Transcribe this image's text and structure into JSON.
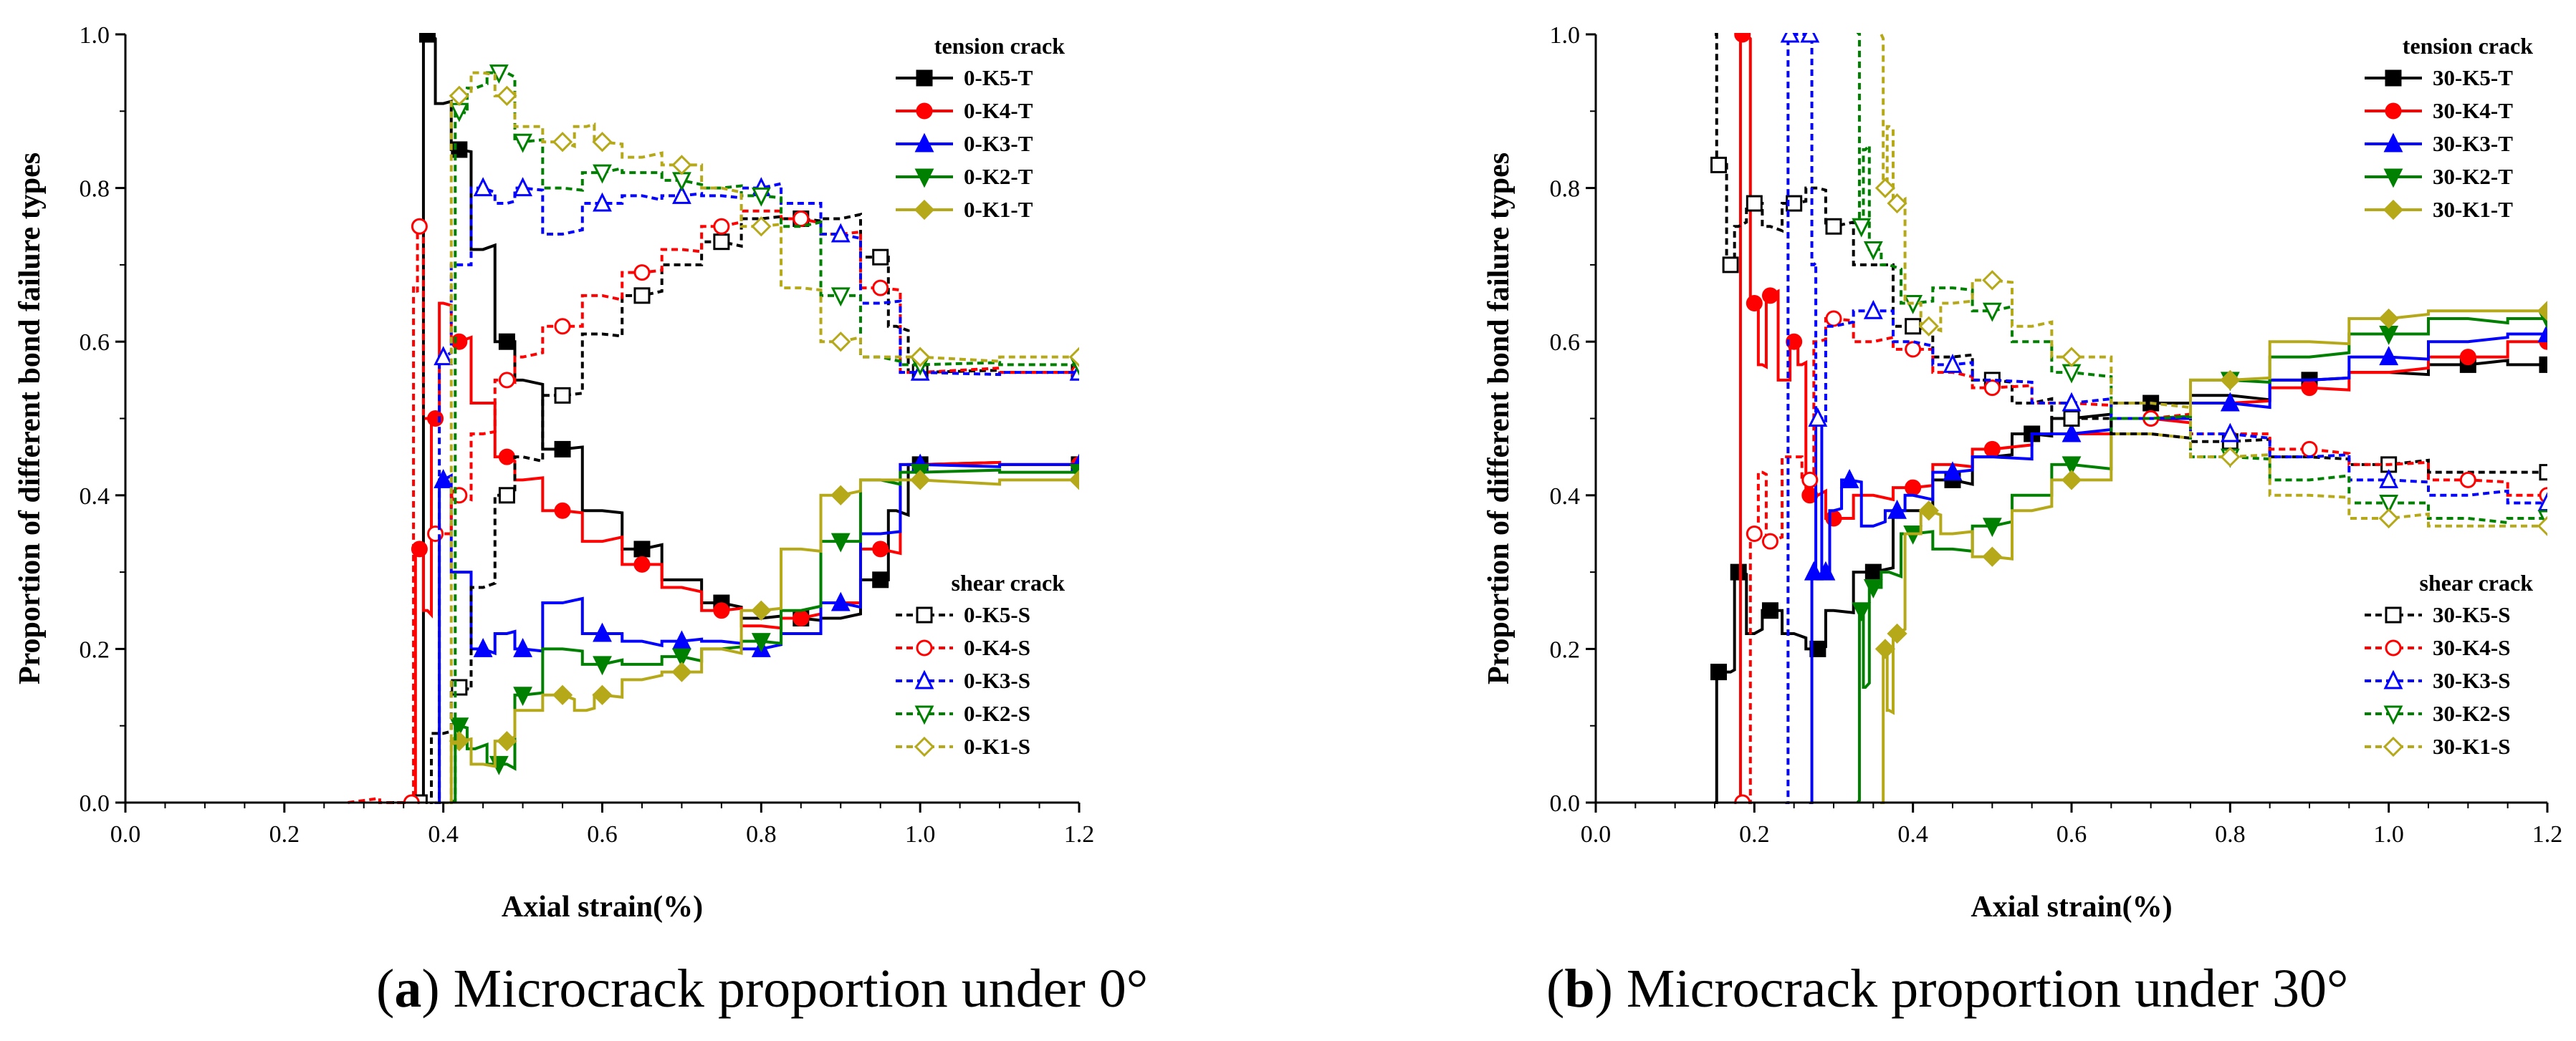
{
  "captions": [
    {
      "letter": "a",
      "text": "Microcrack proportion under 0°"
    },
    {
      "letter": "b",
      "text": "Microcrack proportion under 30°"
    }
  ],
  "chart_data": [
    {
      "type": "line",
      "xlabel": "Axial strain(%)",
      "ylabel": "Proportion of different bond failure types",
      "xlim": [
        0,
        1.2
      ],
      "ylim": [
        0,
        1.0
      ],
      "xticks": [
        "0.0",
        "0.2",
        "0.4",
        "0.6",
        "0.8",
        "1.0",
        "1.2"
      ],
      "yticks": [
        "0.0",
        "0.2",
        "0.4",
        "0.6",
        "0.8",
        "1.0"
      ],
      "legend_groups": [
        {
          "title": "tension crack",
          "position": "top-right",
          "entries": [
            "0-K5-T",
            "0-K4-T",
            "0-K3-T",
            "0-K2-T",
            "0-K1-T"
          ]
        },
        {
          "title": "shear crack",
          "position": "bottom-right",
          "entries": [
            "0-K5-S",
            "0-K4-S",
            "0-K3-S",
            "0-K2-S",
            "0-K1-S"
          ]
        }
      ],
      "series": [
        {
          "name": "0-K5-T",
          "color": "#000000",
          "dash": false,
          "marker": "square",
          "x": [
            0.37,
            0.38,
            0.4,
            0.42,
            0.45,
            0.48,
            0.5,
            0.55,
            0.6,
            0.65,
            0.7,
            0.75,
            0.8,
            0.85,
            0.9,
            0.95,
            0.97,
            1.0,
            1.2
          ],
          "y": [
            0.0,
            1.0,
            0.91,
            0.85,
            0.72,
            0.6,
            0.55,
            0.46,
            0.38,
            0.33,
            0.29,
            0.26,
            0.24,
            0.24,
            0.24,
            0.29,
            0.38,
            0.44,
            0.44
          ]
        },
        {
          "name": "0-K4-T",
          "color": "#ff0000",
          "dash": false,
          "marker": "circle",
          "x": [
            0.36,
            0.37,
            0.38,
            0.39,
            0.4,
            0.42,
            0.45,
            0.48,
            0.5,
            0.55,
            0.6,
            0.65,
            0.7,
            0.75,
            0.8,
            0.85,
            0.9,
            0.95,
            1.0,
            1.2
          ],
          "y": [
            0.0,
            0.33,
            0.25,
            0.5,
            0.65,
            0.6,
            0.52,
            0.45,
            0.42,
            0.38,
            0.34,
            0.31,
            0.28,
            0.25,
            0.23,
            0.24,
            0.26,
            0.33,
            0.44,
            0.44
          ]
        },
        {
          "name": "0-K3-T",
          "color": "#0000ff",
          "dash": false,
          "marker": "triangle-up",
          "x": [
            0.39,
            0.4,
            0.42,
            0.45,
            0.48,
            0.5,
            0.55,
            0.6,
            0.65,
            0.7,
            0.75,
            0.8,
            0.85,
            0.9,
            0.95,
            1.0,
            1.2
          ],
          "y": [
            0.0,
            0.42,
            0.3,
            0.2,
            0.22,
            0.2,
            0.26,
            0.22,
            0.21,
            0.21,
            0.21,
            0.2,
            0.22,
            0.26,
            0.35,
            0.44,
            0.44
          ]
        },
        {
          "name": "0-K2-T",
          "color": "#008000",
          "dash": false,
          "marker": "triangle-down",
          "x": [
            0.41,
            0.42,
            0.44,
            0.47,
            0.48,
            0.5,
            0.55,
            0.6,
            0.65,
            0.7,
            0.75,
            0.8,
            0.85,
            0.9,
            0.95,
            1.0,
            1.2
          ],
          "y": [
            0.0,
            0.1,
            0.07,
            0.05,
            0.05,
            0.14,
            0.2,
            0.18,
            0.18,
            0.19,
            0.2,
            0.21,
            0.25,
            0.34,
            0.42,
            0.43,
            0.43
          ]
        },
        {
          "name": "0-K1-T",
          "color": "#b5a91a",
          "dash": false,
          "marker": "diamond",
          "x": [
            0.4,
            0.42,
            0.45,
            0.48,
            0.5,
            0.55,
            0.58,
            0.6,
            0.65,
            0.7,
            0.75,
            0.8,
            0.85,
            0.9,
            0.95,
            1.0,
            1.2
          ],
          "y": [
            0.0,
            0.08,
            0.05,
            0.08,
            0.12,
            0.14,
            0.12,
            0.14,
            0.16,
            0.17,
            0.2,
            0.25,
            0.33,
            0.4,
            0.42,
            0.42,
            0.42
          ]
        },
        {
          "name": "0-K5-S",
          "color": "#000000",
          "dash": true,
          "marker": "square",
          "x": [
            0.33,
            0.37,
            0.4,
            0.42,
            0.45,
            0.48,
            0.5,
            0.55,
            0.6,
            0.65,
            0.7,
            0.75,
            0.8,
            0.85,
            0.9,
            0.95,
            0.97,
            1.0,
            1.2
          ],
          "y": [
            0.0,
            0.0,
            0.09,
            0.15,
            0.28,
            0.4,
            0.45,
            0.53,
            0.61,
            0.66,
            0.7,
            0.73,
            0.76,
            0.76,
            0.76,
            0.71,
            0.62,
            0.56,
            0.56
          ]
        },
        {
          "name": "0-K4-S",
          "color": "#ff0000",
          "dash": true,
          "marker": "circle",
          "x": [
            0.28,
            0.36,
            0.365,
            0.37,
            0.38,
            0.39,
            0.4,
            0.42,
            0.45,
            0.48,
            0.5,
            0.55,
            0.6,
            0.65,
            0.7,
            0.75,
            0.8,
            0.85,
            0.9,
            0.95,
            1.0,
            1.2
          ],
          "y": [
            0.0,
            0.0,
            0.67,
            0.75,
            0.5,
            0.35,
            0.35,
            0.4,
            0.48,
            0.55,
            0.58,
            0.62,
            0.66,
            0.69,
            0.72,
            0.75,
            0.77,
            0.76,
            0.74,
            0.67,
            0.56,
            0.56
          ]
        },
        {
          "name": "0-K3-S",
          "color": "#0000ff",
          "dash": true,
          "marker": "triangle-up",
          "x": [
            0.39,
            0.4,
            0.42,
            0.45,
            0.48,
            0.5,
            0.55,
            0.6,
            0.65,
            0.7,
            0.75,
            0.8,
            0.85,
            0.9,
            0.95,
            1.0,
            1.2
          ],
          "y": [
            0.0,
            0.58,
            0.7,
            0.8,
            0.78,
            0.8,
            0.74,
            0.78,
            0.79,
            0.79,
            0.79,
            0.8,
            0.78,
            0.74,
            0.65,
            0.56,
            0.56
          ]
        },
        {
          "name": "0-K2-S",
          "color": "#008000",
          "dash": true,
          "marker": "triangle-down",
          "x": [
            0.41,
            0.42,
            0.44,
            0.47,
            0.48,
            0.5,
            0.55,
            0.6,
            0.65,
            0.7,
            0.75,
            0.8,
            0.85,
            0.9,
            0.95,
            1.0,
            1.2
          ],
          "y": [
            0.0,
            0.9,
            0.93,
            0.95,
            0.95,
            0.86,
            0.8,
            0.82,
            0.82,
            0.81,
            0.8,
            0.79,
            0.75,
            0.66,
            0.58,
            0.57,
            0.57
          ]
        },
        {
          "name": "0-K1-S",
          "color": "#b5a91a",
          "dash": true,
          "marker": "diamond",
          "x": [
            0.4,
            0.42,
            0.45,
            0.48,
            0.5,
            0.55,
            0.58,
            0.6,
            0.65,
            0.7,
            0.75,
            0.8,
            0.85,
            0.9,
            0.95,
            1.0,
            1.2
          ],
          "y": [
            0.0,
            0.92,
            0.95,
            0.92,
            0.88,
            0.86,
            0.88,
            0.86,
            0.84,
            0.83,
            0.8,
            0.75,
            0.67,
            0.6,
            0.58,
            0.58,
            0.58
          ]
        }
      ]
    },
    {
      "type": "line",
      "xlabel": "Axial strain(%)",
      "ylabel": "Proportion of different bond failure types",
      "xlim": [
        0,
        1.2
      ],
      "ylim": [
        0,
        1.0
      ],
      "xticks": [
        "0.0",
        "0.2",
        "0.4",
        "0.6",
        "0.8",
        "1.0",
        "1.2"
      ],
      "yticks": [
        "0.0",
        "0.2",
        "0.4",
        "0.6",
        "0.8",
        "1.0"
      ],
      "legend_groups": [
        {
          "title": "tension crack",
          "position": "top-right",
          "entries": [
            "30-K5-T",
            "30-K4-T",
            "30-K3-T",
            "30-K2-T",
            "30-K1-T"
          ]
        },
        {
          "title": "shear crack",
          "position": "bottom-right",
          "entries": [
            "30-K5-S",
            "30-K4-S",
            "30-K3-S",
            "30-K2-S",
            "30-K1-S"
          ]
        }
      ],
      "series": [
        {
          "name": "30-K5-T",
          "color": "#000000",
          "dash": false,
          "marker": "square",
          "x": [
            0.15,
            0.155,
            0.17,
            0.18,
            0.2,
            0.22,
            0.25,
            0.28,
            0.3,
            0.35,
            0.4,
            0.45,
            0.5,
            0.55,
            0.6,
            0.7,
            0.8,
            0.9,
            1.0,
            1.1,
            1.2
          ],
          "y": [
            0.0,
            0.17,
            0.17,
            0.3,
            0.22,
            0.25,
            0.22,
            0.2,
            0.25,
            0.3,
            0.38,
            0.42,
            0.45,
            0.48,
            0.5,
            0.52,
            0.53,
            0.55,
            0.56,
            0.57,
            0.57
          ]
        },
        {
          "name": "30-K4-T",
          "color": "#ff0000",
          "dash": false,
          "marker": "circle",
          "x": [
            0.18,
            0.185,
            0.19,
            0.2,
            0.21,
            0.22,
            0.24,
            0.25,
            0.26,
            0.27,
            0.28,
            0.3,
            0.35,
            0.4,
            0.45,
            0.5,
            0.6,
            0.7,
            0.8,
            0.9,
            1.0,
            1.1,
            1.2
          ],
          "y": [
            0.0,
            1.0,
            1.0,
            0.65,
            0.57,
            0.66,
            0.55,
            0.6,
            0.57,
            0.4,
            0.4,
            0.37,
            0.4,
            0.41,
            0.44,
            0.46,
            0.48,
            0.5,
            0.52,
            0.54,
            0.56,
            0.58,
            0.6
          ]
        },
        {
          "name": "30-K3-T",
          "color": "#0000ff",
          "dash": false,
          "marker": "triangle-up",
          "x": [
            0.27,
            0.275,
            0.28,
            0.29,
            0.3,
            0.32,
            0.35,
            0.38,
            0.4,
            0.45,
            0.5,
            0.6,
            0.7,
            0.8,
            0.9,
            1.0,
            1.1,
            1.2
          ],
          "y": [
            0.0,
            0.3,
            0.5,
            0.3,
            0.38,
            0.42,
            0.36,
            0.38,
            0.4,
            0.43,
            0.45,
            0.48,
            0.5,
            0.52,
            0.55,
            0.58,
            0.6,
            0.61
          ]
        },
        {
          "name": "30-K2-T",
          "color": "#008000",
          "dash": false,
          "marker": "triangle-down",
          "x": [
            0.33,
            0.335,
            0.34,
            0.35,
            0.37,
            0.4,
            0.45,
            0.5,
            0.55,
            0.6,
            0.7,
            0.8,
            0.9,
            1.0,
            1.1,
            1.2
          ],
          "y": [
            0.0,
            0.25,
            0.15,
            0.28,
            0.3,
            0.35,
            0.33,
            0.36,
            0.4,
            0.44,
            0.5,
            0.55,
            0.58,
            0.61,
            0.63,
            0.63
          ]
        },
        {
          "name": "30-K1-T",
          "color": "#b5a91a",
          "dash": false,
          "marker": "diamond",
          "x": [
            0.36,
            0.365,
            0.37,
            0.38,
            0.4,
            0.42,
            0.45,
            0.5,
            0.55,
            0.6,
            0.7,
            0.8,
            0.9,
            1.0,
            1.1,
            1.2
          ],
          "y": [
            0.0,
            0.2,
            0.12,
            0.22,
            0.35,
            0.38,
            0.35,
            0.32,
            0.38,
            0.42,
            0.48,
            0.55,
            0.6,
            0.63,
            0.64,
            0.64
          ]
        },
        {
          "name": "30-K5-S",
          "color": "#000000",
          "dash": true,
          "marker": "square",
          "x": [
            0.15,
            0.155,
            0.16,
            0.17,
            0.18,
            0.2,
            0.22,
            0.25,
            0.28,
            0.3,
            0.35,
            0.4,
            0.45,
            0.5,
            0.55,
            0.6,
            0.7,
            0.8,
            0.9,
            1.0,
            1.1,
            1.2
          ],
          "y": [
            1.0,
            0.83,
            0.83,
            0.7,
            0.75,
            0.78,
            0.75,
            0.78,
            0.8,
            0.75,
            0.7,
            0.62,
            0.58,
            0.55,
            0.52,
            0.5,
            0.48,
            0.47,
            0.45,
            0.44,
            0.43,
            0.43
          ]
        },
        {
          "name": "30-K4-S",
          "color": "#ff0000",
          "dash": true,
          "marker": "circle",
          "x": [
            0.18,
            0.185,
            0.19,
            0.2,
            0.21,
            0.22,
            0.25,
            0.27,
            0.28,
            0.3,
            0.35,
            0.4,
            0.45,
            0.5,
            0.6,
            0.7,
            0.8,
            0.9,
            1.0,
            1.1,
            1.2
          ],
          "y": [
            0.0,
            0.0,
            0.0,
            0.35,
            0.43,
            0.34,
            0.45,
            0.42,
            0.6,
            0.63,
            0.6,
            0.59,
            0.56,
            0.54,
            0.52,
            0.5,
            0.48,
            0.46,
            0.44,
            0.42,
            0.4
          ]
        },
        {
          "name": "30-K3-S",
          "color": "#0000ff",
          "dash": true,
          "marker": "triangle-up",
          "x": [
            0.24,
            0.245,
            0.25,
            0.27,
            0.275,
            0.28,
            0.3,
            0.35,
            0.4,
            0.45,
            0.5,
            0.6,
            0.7,
            0.8,
            0.9,
            1.0,
            1.1,
            1.2
          ],
          "y": [
            0.0,
            1.0,
            1.0,
            1.0,
            0.7,
            0.5,
            0.62,
            0.64,
            0.6,
            0.57,
            0.55,
            0.52,
            0.5,
            0.48,
            0.45,
            0.42,
            0.4,
            0.39
          ]
        },
        {
          "name": "30-K2-S",
          "color": "#008000",
          "dash": true,
          "marker": "triangle-down",
          "x": [
            0.33,
            0.335,
            0.34,
            0.35,
            0.37,
            0.4,
            0.45,
            0.5,
            0.55,
            0.6,
            0.7,
            0.8,
            0.9,
            1.0,
            1.1,
            1.2
          ],
          "y": [
            1.0,
            0.75,
            0.85,
            0.72,
            0.7,
            0.65,
            0.67,
            0.64,
            0.6,
            0.56,
            0.5,
            0.45,
            0.42,
            0.39,
            0.37,
            0.37
          ]
        },
        {
          "name": "30-K1-S",
          "color": "#b5a91a",
          "dash": true,
          "marker": "diamond",
          "x": [
            0.36,
            0.365,
            0.37,
            0.38,
            0.4,
            0.42,
            0.45,
            0.5,
            0.55,
            0.6,
            0.7,
            0.8,
            0.9,
            1.0,
            1.1,
            1.2
          ],
          "y": [
            1.0,
            0.8,
            0.88,
            0.78,
            0.65,
            0.62,
            0.65,
            0.68,
            0.62,
            0.58,
            0.52,
            0.45,
            0.4,
            0.37,
            0.36,
            0.36
          ]
        }
      ]
    }
  ]
}
